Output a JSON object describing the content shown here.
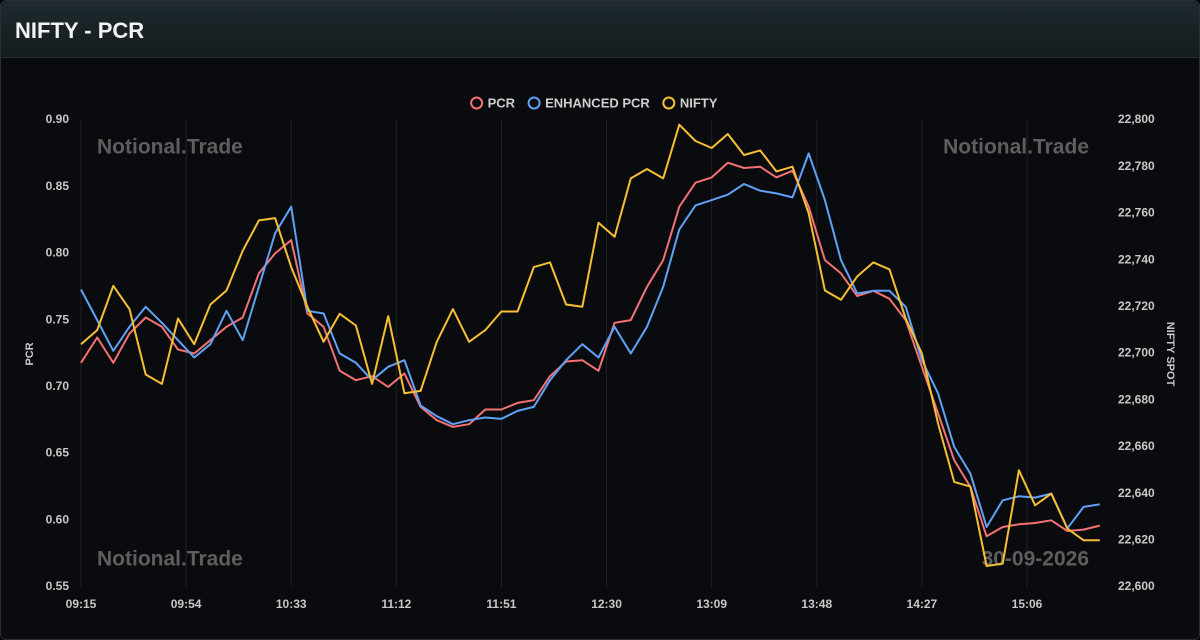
{
  "header": {
    "title": "NIFTY - PCR"
  },
  "chart_data": {
    "type": "line",
    "ylabel": "PCR",
    "y2label": "NIFTY SPOT",
    "watermarks": [
      "Notional.Trade",
      "Notional.Trade",
      "Notional.Trade",
      "30-09-2026"
    ],
    "x": [
      "09:15",
      "09:21",
      "09:27",
      "09:33",
      "09:39",
      "09:45",
      "09:51",
      "09:57",
      "10:03",
      "10:09",
      "10:15",
      "10:21",
      "10:27",
      "10:33",
      "10:39",
      "10:45",
      "10:51",
      "10:57",
      "11:03",
      "11:09",
      "11:15",
      "11:21",
      "11:27",
      "11:33",
      "11:39",
      "11:45",
      "11:51",
      "11:57",
      "12:03",
      "12:09",
      "12:15",
      "12:21",
      "12:27",
      "12:33",
      "12:39",
      "12:45",
      "12:51",
      "12:57",
      "13:03",
      "13:09",
      "13:15",
      "13:21",
      "13:27",
      "13:33",
      "13:39",
      "13:45",
      "13:51",
      "13:57",
      "14:03",
      "14:09",
      "14:15",
      "14:21",
      "14:27",
      "14:33",
      "14:39",
      "14:45",
      "14:51",
      "14:57",
      "15:03",
      "15:09",
      "15:15",
      "15:21",
      "15:27",
      "15:33"
    ],
    "xticks": [
      "09:15",
      "09:54",
      "10:33",
      "11:12",
      "11:51",
      "12:30",
      "13:09",
      "13:48",
      "14:27",
      "15:06"
    ],
    "ylim": [
      0.55,
      0.9
    ],
    "yticks": [
      0.55,
      {
        "value": 0.6,
        "label": "0.60"
      },
      0.65,
      {
        "value": 0.7,
        "label": "0.70"
      },
      0.75,
      {
        "value": 0.8,
        "label": "0.80"
      },
      0.85,
      {
        "value": 0.9,
        "label": "0.90"
      }
    ],
    "y2lim": [
      22600,
      22800
    ],
    "y2ticks": [
      {
        "value": 22600,
        "label": "22,600"
      },
      {
        "value": 22620,
        "label": "22,620"
      },
      {
        "value": 22640,
        "label": "22,640"
      },
      {
        "value": 22660,
        "label": "22,660"
      },
      {
        "value": 22680,
        "label": "22,680"
      },
      {
        "value": 22700,
        "label": "22,700"
      },
      {
        "value": 22720,
        "label": "22,720"
      },
      {
        "value": 22740,
        "label": "22,740"
      },
      {
        "value": 22760,
        "label": "22,760"
      },
      {
        "value": 22780,
        "label": "22,780"
      },
      {
        "value": 22800,
        "label": "22,800"
      }
    ],
    "grid": true,
    "legend": "top",
    "series": [
      {
        "name": "PCR",
        "color": "#f47174",
        "values": [
          0.718,
          0.737,
          0.718,
          0.74,
          0.752,
          0.745,
          0.728,
          0.725,
          0.735,
          0.745,
          0.752,
          0.785,
          0.8,
          0.81,
          0.755,
          0.745,
          0.712,
          0.705,
          0.708,
          0.7,
          0.71,
          0.685,
          0.675,
          0.67,
          0.672,
          0.683,
          0.683,
          0.688,
          0.69,
          0.708,
          0.719,
          0.72,
          0.712,
          0.748,
          0.75,
          0.775,
          0.795,
          0.835,
          0.853,
          0.857,
          0.868,
          0.864,
          0.865,
          0.857,
          0.862,
          0.835,
          0.795,
          0.785,
          0.768,
          0.772,
          0.766,
          0.75,
          0.715,
          0.68,
          0.645,
          0.625,
          0.588,
          0.595,
          0.597,
          0.598,
          0.6,
          0.592,
          0.593,
          0.596
        ]
      },
      {
        "name": "ENHANCED PCR",
        "color": "#5fa2f7",
        "values": [
          0.773,
          0.75,
          0.727,
          0.745,
          0.76,
          0.748,
          0.735,
          0.722,
          0.732,
          0.757,
          0.735,
          0.775,
          0.815,
          0.835,
          0.757,
          0.755,
          0.725,
          0.718,
          0.705,
          0.715,
          0.72,
          0.686,
          0.678,
          0.672,
          0.675,
          0.677,
          0.676,
          0.682,
          0.685,
          0.705,
          0.72,
          0.732,
          0.722,
          0.745,
          0.725,
          0.745,
          0.775,
          0.818,
          0.836,
          0.84,
          0.844,
          0.852,
          0.847,
          0.845,
          0.842,
          0.875,
          0.84,
          0.795,
          0.77,
          0.772,
          0.772,
          0.76,
          0.72,
          0.695,
          0.655,
          0.635,
          0.595,
          0.615,
          0.618,
          0.617,
          0.62,
          0.594,
          0.61,
          0.612
        ]
      },
      {
        "name": "NIFTY",
        "color": "#f7c034",
        "axis": "y2",
        "values": [
          22704,
          22710,
          22729,
          22719,
          22691,
          22687,
          22715,
          22704,
          22721,
          22727,
          22744,
          22757,
          22758,
          22737,
          22720,
          22705,
          22717,
          22712,
          22687,
          22716,
          22683,
          22684,
          22705,
          22719,
          22705,
          22710,
          22718,
          22718,
          22737,
          22739,
          22721,
          22720,
          22756,
          22750,
          22775,
          22779,
          22775,
          22798,
          22791,
          22788,
          22794,
          22785,
          22787,
          22778,
          22780,
          22760,
          22727,
          22723,
          22733,
          22739,
          22736,
          22715,
          22700,
          22670,
          22645,
          22643,
          22609,
          22610,
          22650,
          22635,
          22640,
          22625,
          22620,
          22620
        ]
      }
    ]
  }
}
